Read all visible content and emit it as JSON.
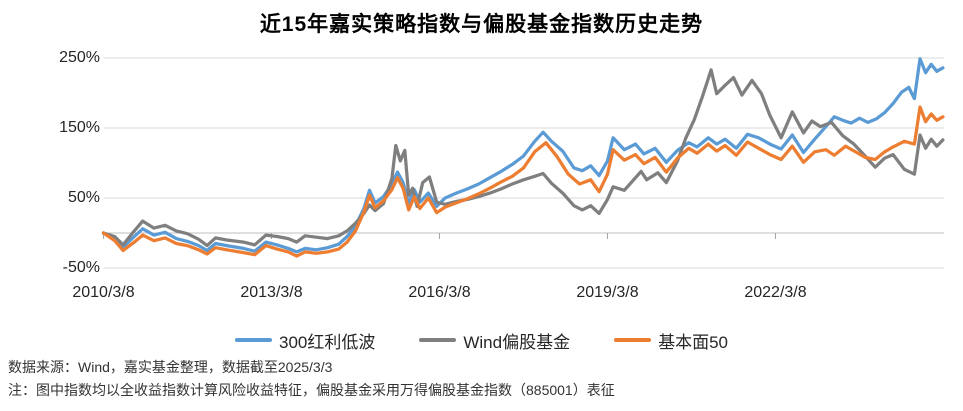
{
  "title": "近15年嘉实策略指数与偏股基金指数历史走势",
  "footer": {
    "source": "数据来源：Wind，嘉实基金整理，数据截至2025/3/3",
    "note": "注：图中指数均以全收益指数计算风险收益特征，偏股基金采用万得偏股基金指数（885001）表征"
  },
  "colors": {
    "grid": "#d9d9d9",
    "axis": "#bfbfbf",
    "tick": "#a6a6a6",
    "text": "#262626"
  },
  "chart_data": {
    "type": "line",
    "title": "近15年嘉实策略指数与偏股基金指数历史走势",
    "x_unit": "years since 2010/3/8",
    "x_axis": {
      "ticks": [
        {
          "label": "2010/3/8",
          "t": 0
        },
        {
          "label": "2013/3/8",
          "t": 3
        },
        {
          "label": "2016/3/8",
          "t": 6
        },
        {
          "label": "2019/3/8",
          "t": 9
        },
        {
          "label": "2022/3/8",
          "t": 12
        }
      ],
      "range": [
        0,
        14.99
      ]
    },
    "y_axis": {
      "unit": "%",
      "ticks": [
        {
          "label": "250%",
          "value": 250
        },
        {
          "label": "150%",
          "value": 150
        },
        {
          "label": "50%",
          "value": 50
        },
        {
          "label": "-50%",
          "value": -50
        }
      ],
      "axis_cross_value": 0,
      "range": [
        -50,
        250
      ]
    },
    "grid": "horizontal",
    "legend_position": "bottom",
    "series": [
      {
        "name": "300红利低波",
        "color": "#5B9BD5",
        "points": [
          [
            0,
            0
          ],
          [
            0.2,
            -8
          ],
          [
            0.35,
            -20
          ],
          [
            0.55,
            -5
          ],
          [
            0.7,
            6
          ],
          [
            0.9,
            -3
          ],
          [
            1.1,
            1
          ],
          [
            1.3,
            -8
          ],
          [
            1.5,
            -12
          ],
          [
            1.7,
            -18
          ],
          [
            1.85,
            -25
          ],
          [
            2.0,
            -15
          ],
          [
            2.2,
            -18
          ],
          [
            2.5,
            -22
          ],
          [
            2.7,
            -26
          ],
          [
            2.9,
            -13
          ],
          [
            3.1,
            -17
          ],
          [
            3.3,
            -22
          ],
          [
            3.45,
            -27
          ],
          [
            3.6,
            -22
          ],
          [
            3.8,
            -24
          ],
          [
            4.0,
            -21
          ],
          [
            4.2,
            -16
          ],
          [
            4.35,
            -5
          ],
          [
            4.5,
            10
          ],
          [
            4.65,
            35
          ],
          [
            4.75,
            61
          ],
          [
            4.85,
            43
          ],
          [
            5.0,
            52
          ],
          [
            5.15,
            70
          ],
          [
            5.25,
            87
          ],
          [
            5.35,
            72
          ],
          [
            5.45,
            42
          ],
          [
            5.55,
            62
          ],
          [
            5.65,
            44
          ],
          [
            5.8,
            57
          ],
          [
            5.95,
            38
          ],
          [
            6.1,
            50
          ],
          [
            6.3,
            57
          ],
          [
            6.5,
            63
          ],
          [
            6.7,
            70
          ],
          [
            6.9,
            79
          ],
          [
            7.1,
            88
          ],
          [
            7.3,
            98
          ],
          [
            7.5,
            110
          ],
          [
            7.7,
            131
          ],
          [
            7.85,
            144
          ],
          [
            8.0,
            131
          ],
          [
            8.2,
            117
          ],
          [
            8.4,
            93
          ],
          [
            8.55,
            89
          ],
          [
            8.7,
            96
          ],
          [
            8.85,
            82
          ],
          [
            9.0,
            103
          ],
          [
            9.1,
            136
          ],
          [
            9.3,
            119
          ],
          [
            9.5,
            127
          ],
          [
            9.65,
            113
          ],
          [
            9.85,
            121
          ],
          [
            10.05,
            101
          ],
          [
            10.25,
            118
          ],
          [
            10.45,
            129
          ],
          [
            10.6,
            123
          ],
          [
            10.8,
            136
          ],
          [
            10.95,
            127
          ],
          [
            11.1,
            134
          ],
          [
            11.3,
            121
          ],
          [
            11.5,
            141
          ],
          [
            11.7,
            136
          ],
          [
            11.9,
            127
          ],
          [
            12.1,
            120
          ],
          [
            12.3,
            140
          ],
          [
            12.5,
            115
          ],
          [
            12.7,
            134
          ],
          [
            12.9,
            152
          ],
          [
            13.05,
            166
          ],
          [
            13.2,
            161
          ],
          [
            13.35,
            157
          ],
          [
            13.5,
            164
          ],
          [
            13.65,
            158
          ],
          [
            13.8,
            163
          ],
          [
            13.95,
            172
          ],
          [
            14.1,
            185
          ],
          [
            14.25,
            201
          ],
          [
            14.38,
            208
          ],
          [
            14.48,
            192
          ],
          [
            14.58,
            249
          ],
          [
            14.68,
            229
          ],
          [
            14.78,
            241
          ],
          [
            14.88,
            231
          ],
          [
            14.99,
            236
          ]
        ]
      },
      {
        "name": "Wind偏股基金",
        "color": "#7F7F7F",
        "points": [
          [
            0,
            0
          ],
          [
            0.2,
            -5
          ],
          [
            0.35,
            -17
          ],
          [
            0.55,
            3
          ],
          [
            0.7,
            17
          ],
          [
            0.9,
            7
          ],
          [
            1.1,
            11
          ],
          [
            1.3,
            3
          ],
          [
            1.5,
            -1
          ],
          [
            1.7,
            -9
          ],
          [
            1.85,
            -18
          ],
          [
            2.0,
            -7
          ],
          [
            2.2,
            -10
          ],
          [
            2.5,
            -13
          ],
          [
            2.7,
            -17
          ],
          [
            2.9,
            -3
          ],
          [
            3.1,
            -5
          ],
          [
            3.3,
            -8
          ],
          [
            3.45,
            -13
          ],
          [
            3.6,
            -4
          ],
          [
            3.8,
            -6
          ],
          [
            4.0,
            -8
          ],
          [
            4.2,
            -4
          ],
          [
            4.35,
            3
          ],
          [
            4.5,
            14
          ],
          [
            4.65,
            28
          ],
          [
            4.75,
            40
          ],
          [
            4.85,
            32
          ],
          [
            5.0,
            42
          ],
          [
            5.15,
            78
          ],
          [
            5.22,
            125
          ],
          [
            5.3,
            103
          ],
          [
            5.38,
            118
          ],
          [
            5.45,
            54
          ],
          [
            5.52,
            64
          ],
          [
            5.6,
            38
          ],
          [
            5.7,
            72
          ],
          [
            5.82,
            80
          ],
          [
            5.95,
            44
          ],
          [
            6.1,
            41
          ],
          [
            6.3,
            45
          ],
          [
            6.5,
            48
          ],
          [
            6.7,
            52
          ],
          [
            6.9,
            57
          ],
          [
            7.1,
            63
          ],
          [
            7.3,
            70
          ],
          [
            7.5,
            76
          ],
          [
            7.7,
            81
          ],
          [
            7.85,
            85
          ],
          [
            8.0,
            71
          ],
          [
            8.2,
            57
          ],
          [
            8.4,
            39
          ],
          [
            8.55,
            33
          ],
          [
            8.7,
            39
          ],
          [
            8.85,
            28
          ],
          [
            9.0,
            48
          ],
          [
            9.1,
            66
          ],
          [
            9.3,
            61
          ],
          [
            9.5,
            79
          ],
          [
            9.6,
            88
          ],
          [
            9.7,
            76
          ],
          [
            9.9,
            86
          ],
          [
            10.05,
            72
          ],
          [
            10.25,
            103
          ],
          [
            10.4,
            136
          ],
          [
            10.55,
            162
          ],
          [
            10.7,
            196
          ],
          [
            10.85,
            233
          ],
          [
            10.95,
            199
          ],
          [
            11.1,
            211
          ],
          [
            11.25,
            222
          ],
          [
            11.4,
            197
          ],
          [
            11.58,
            218
          ],
          [
            11.75,
            199
          ],
          [
            11.9,
            168
          ],
          [
            12.1,
            136
          ],
          [
            12.3,
            173
          ],
          [
            12.5,
            143
          ],
          [
            12.65,
            160
          ],
          [
            12.8,
            152
          ],
          [
            13.0,
            158
          ],
          [
            13.2,
            139
          ],
          [
            13.4,
            127
          ],
          [
            13.6,
            110
          ],
          [
            13.78,
            94
          ],
          [
            13.95,
            107
          ],
          [
            14.1,
            112
          ],
          [
            14.3,
            91
          ],
          [
            14.48,
            84
          ],
          [
            14.58,
            140
          ],
          [
            14.68,
            121
          ],
          [
            14.78,
            134
          ],
          [
            14.88,
            124
          ],
          [
            14.99,
            133
          ]
        ]
      },
      {
        "name": "基本面50",
        "color": "#ED7D31",
        "points": [
          [
            0,
            0
          ],
          [
            0.2,
            -11
          ],
          [
            0.35,
            -25
          ],
          [
            0.55,
            -13
          ],
          [
            0.7,
            -3
          ],
          [
            0.9,
            -11
          ],
          [
            1.1,
            -7
          ],
          [
            1.3,
            -15
          ],
          [
            1.5,
            -18
          ],
          [
            1.7,
            -24
          ],
          [
            1.85,
            -30
          ],
          [
            2.0,
            -21
          ],
          [
            2.2,
            -24
          ],
          [
            2.5,
            -28
          ],
          [
            2.7,
            -31
          ],
          [
            2.9,
            -18
          ],
          [
            3.1,
            -23
          ],
          [
            3.3,
            -27
          ],
          [
            3.45,
            -33
          ],
          [
            3.6,
            -27
          ],
          [
            3.8,
            -29
          ],
          [
            4.0,
            -27
          ],
          [
            4.2,
            -23
          ],
          [
            4.35,
            -13
          ],
          [
            4.5,
            3
          ],
          [
            4.65,
            30
          ],
          [
            4.75,
            54
          ],
          [
            4.85,
            36
          ],
          [
            5.0,
            46
          ],
          [
            5.15,
            62
          ],
          [
            5.25,
            79
          ],
          [
            5.35,
            64
          ],
          [
            5.45,
            33
          ],
          [
            5.55,
            52
          ],
          [
            5.65,
            35
          ],
          [
            5.8,
            50
          ],
          [
            5.95,
            29
          ],
          [
            6.1,
            37
          ],
          [
            6.3,
            43
          ],
          [
            6.5,
            49
          ],
          [
            6.7,
            56
          ],
          [
            6.9,
            64
          ],
          [
            7.1,
            73
          ],
          [
            7.3,
            81
          ],
          [
            7.5,
            93
          ],
          [
            7.7,
            116
          ],
          [
            7.9,
            129
          ],
          [
            8.1,
            109
          ],
          [
            8.3,
            84
          ],
          [
            8.5,
            70
          ],
          [
            8.7,
            76
          ],
          [
            8.85,
            59
          ],
          [
            9.0,
            84
          ],
          [
            9.1,
            119
          ],
          [
            9.3,
            104
          ],
          [
            9.5,
            112
          ],
          [
            9.65,
            99
          ],
          [
            9.85,
            108
          ],
          [
            10.05,
            87
          ],
          [
            10.25,
            107
          ],
          [
            10.45,
            121
          ],
          [
            10.6,
            114
          ],
          [
            10.8,
            127
          ],
          [
            10.95,
            117
          ],
          [
            11.1,
            125
          ],
          [
            11.3,
            111
          ],
          [
            11.5,
            130
          ],
          [
            11.7,
            121
          ],
          [
            11.9,
            112
          ],
          [
            12.1,
            105
          ],
          [
            12.3,
            124
          ],
          [
            12.5,
            101
          ],
          [
            12.7,
            116
          ],
          [
            12.9,
            119
          ],
          [
            13.05,
            111
          ],
          [
            13.25,
            124
          ],
          [
            13.45,
            115
          ],
          [
            13.6,
            108
          ],
          [
            13.78,
            105
          ],
          [
            13.95,
            116
          ],
          [
            14.1,
            123
          ],
          [
            14.3,
            131
          ],
          [
            14.48,
            127
          ],
          [
            14.58,
            180
          ],
          [
            14.68,
            159
          ],
          [
            14.78,
            170
          ],
          [
            14.88,
            161
          ],
          [
            14.99,
            166
          ]
        ]
      }
    ]
  }
}
